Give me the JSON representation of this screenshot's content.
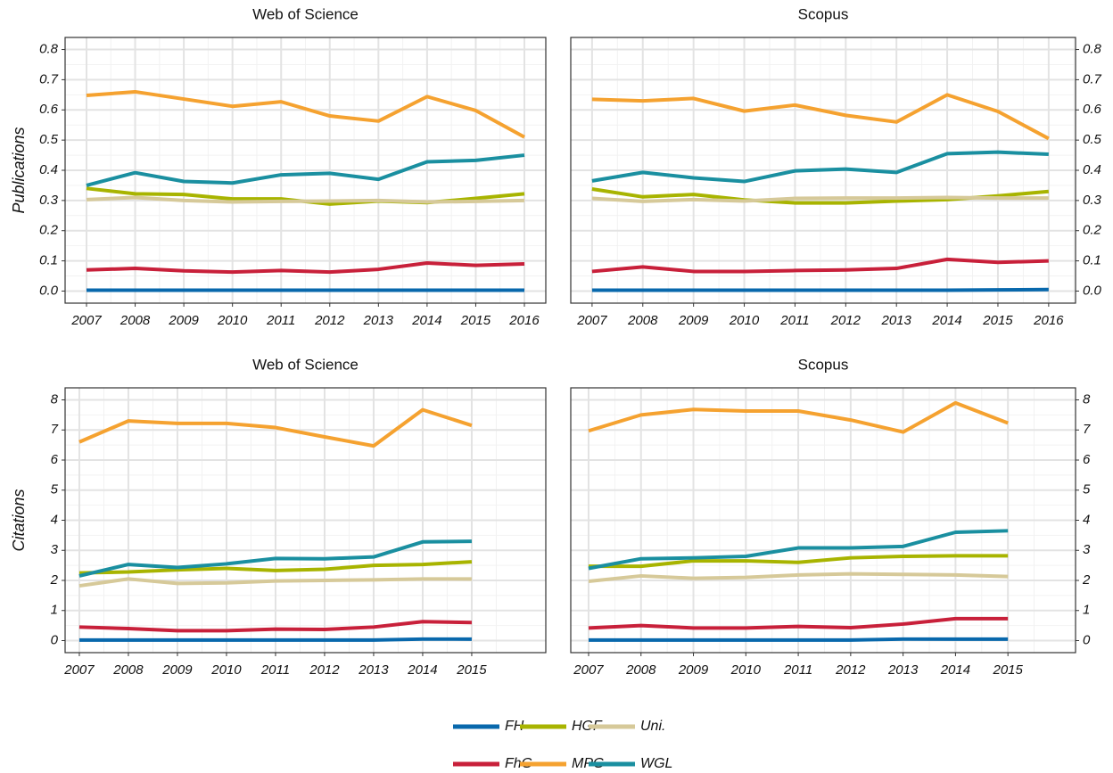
{
  "chart_data": [
    {
      "type": "line",
      "title": "Web of Science",
      "y_label": "Publications",
      "y_axis_position": "left",
      "x": [
        2007,
        2008,
        2009,
        2010,
        2011,
        2012,
        2013,
        2014,
        2015,
        2016
      ],
      "xlim": [
        2006.56,
        2016.44
      ],
      "xticks": [
        2007,
        2008,
        2009,
        2010,
        2011,
        2012,
        2013,
        2014,
        2015,
        2016
      ],
      "ylim": [
        -0.04,
        0.84
      ],
      "yticks": [
        {
          "value": 0,
          "label": "0.0"
        },
        0.1,
        0.2,
        0.3,
        0.4,
        0.5,
        0.6,
        0.7,
        0.8
      ],
      "grid": true,
      "series": [
        {
          "name": "FH",
          "color": "#0868ac",
          "values": [
            0.003,
            0.003,
            0.003,
            0.003,
            0.003,
            0.003,
            0.003,
            0.003,
            0.003,
            0.003
          ]
        },
        {
          "name": "HGF",
          "color": "#a8b400",
          "values": [
            0.34,
            0.322,
            0.32,
            0.305,
            0.305,
            0.288,
            0.298,
            0.293,
            0.307,
            0.322
          ]
        },
        {
          "name": "Uni.",
          "color": "#d6c999",
          "values": [
            0.303,
            0.31,
            0.3,
            0.295,
            0.297,
            0.298,
            0.3,
            0.295,
            0.297,
            0.3
          ]
        },
        {
          "name": "FhG",
          "color": "#c8203a",
          "values": [
            0.07,
            0.075,
            0.067,
            0.063,
            0.068,
            0.063,
            0.072,
            0.093,
            0.085,
            0.09
          ]
        },
        {
          "name": "MPG",
          "color": "#f5a230",
          "values": [
            0.648,
            0.66,
            0.636,
            0.612,
            0.627,
            0.58,
            0.563,
            0.644,
            0.598,
            0.51
          ]
        },
        {
          "name": "WGL",
          "color": "#1a8fa0",
          "values": [
            0.35,
            0.392,
            0.363,
            0.358,
            0.385,
            0.39,
            0.37,
            0.428,
            0.433,
            0.45
          ]
        }
      ]
    },
    {
      "type": "line",
      "title": "Scopus",
      "y_axis_position": "right",
      "x": [
        2007,
        2008,
        2009,
        2010,
        2011,
        2012,
        2013,
        2014,
        2015,
        2016
      ],
      "xlim": [
        2006.58,
        2016.53
      ],
      "xticks": [
        2007,
        2008,
        2009,
        2010,
        2011,
        2012,
        2013,
        2014,
        2015,
        2016
      ],
      "ylim": [
        -0.04,
        0.84
      ],
      "yticks": [
        {
          "value": 0,
          "label": "0.0"
        },
        0.1,
        0.2,
        0.3,
        0.4,
        0.5,
        0.6,
        0.7,
        0.8
      ],
      "grid": true,
      "series": [
        {
          "color": "#0868ac",
          "values": [
            0.003,
            0.003,
            0.003,
            0.003,
            0.003,
            0.003,
            0.003,
            0.003,
            0.004,
            0.005
          ]
        },
        {
          "color": "#a8b400",
          "values": [
            0.338,
            0.312,
            0.32,
            0.302,
            0.292,
            0.292,
            0.298,
            0.303,
            0.315,
            0.33
          ]
        },
        {
          "color": "#d6c999",
          "values": [
            0.307,
            0.297,
            0.303,
            0.298,
            0.307,
            0.308,
            0.308,
            0.31,
            0.308,
            0.308
          ]
        },
        {
          "color": "#c8203a",
          "values": [
            0.065,
            0.08,
            0.065,
            0.065,
            0.068,
            0.07,
            0.075,
            0.105,
            0.095,
            0.1
          ]
        },
        {
          "color": "#f5a230",
          "values": [
            0.635,
            0.63,
            0.638,
            0.596,
            0.616,
            0.582,
            0.56,
            0.65,
            0.595,
            0.505
          ]
        },
        {
          "color": "#1a8fa0",
          "values": [
            0.365,
            0.393,
            0.375,
            0.363,
            0.398,
            0.404,
            0.393,
            0.455,
            0.46,
            0.453
          ]
        }
      ]
    },
    {
      "type": "line",
      "title": "Web of Science",
      "y_label": "Citations",
      "y_axis_position": "left",
      "x": [
        2007,
        2008,
        2009,
        2010,
        2011,
        2012,
        2013,
        2014,
        2015
      ],
      "xlim": [
        2006.71,
        2016.51
      ],
      "xticks": [
        2007,
        2008,
        2009,
        2010,
        2011,
        2012,
        2013,
        2014,
        2015
      ],
      "ylim": [
        -0.4,
        8.4
      ],
      "yticks": [
        0,
        1,
        2,
        3,
        4,
        5,
        6,
        7,
        8
      ],
      "grid": true,
      "series": [
        {
          "color": "#0868ac",
          "values": [
            0.02,
            0.02,
            0.02,
            0.02,
            0.02,
            0.02,
            0.02,
            0.05,
            0.05
          ]
        },
        {
          "color": "#a8b400",
          "values": [
            2.25,
            2.28,
            2.35,
            2.4,
            2.33,
            2.37,
            2.5,
            2.53,
            2.62
          ]
        },
        {
          "color": "#d6c999",
          "values": [
            1.82,
            2.05,
            1.9,
            1.92,
            1.98,
            2.0,
            2.02,
            2.05,
            2.05
          ]
        },
        {
          "color": "#c8203a",
          "values": [
            0.45,
            0.4,
            0.33,
            0.33,
            0.38,
            0.37,
            0.45,
            0.63,
            0.6
          ]
        },
        {
          "color": "#f5a230",
          "values": [
            6.6,
            7.3,
            7.22,
            7.22,
            7.08,
            6.77,
            6.47,
            7.67,
            7.15
          ]
        },
        {
          "color": "#1a8fa0",
          "values": [
            2.15,
            2.53,
            2.43,
            2.55,
            2.73,
            2.72,
            2.78,
            3.28,
            3.3
          ]
        }
      ]
    },
    {
      "type": "line",
      "title": "Scopus",
      "y_axis_position": "right",
      "x": [
        2007,
        2008,
        2009,
        2010,
        2011,
        2012,
        2013,
        2014,
        2015
      ],
      "xlim": [
        2006.66,
        2016.29
      ],
      "xticks": [
        2007,
        2008,
        2009,
        2010,
        2011,
        2012,
        2013,
        2014,
        2015
      ],
      "ylim": [
        -0.4,
        8.4
      ],
      "yticks": [
        0,
        1,
        2,
        3,
        4,
        5,
        6,
        7,
        8
      ],
      "grid": true,
      "series": [
        {
          "color": "#0868ac",
          "values": [
            0.02,
            0.02,
            0.02,
            0.02,
            0.02,
            0.02,
            0.05,
            0.05,
            0.05
          ]
        },
        {
          "color": "#a8b400",
          "values": [
            2.47,
            2.47,
            2.65,
            2.65,
            2.6,
            2.75,
            2.8,
            2.82,
            2.82
          ]
        },
        {
          "color": "#d6c999",
          "values": [
            1.97,
            2.15,
            2.07,
            2.1,
            2.18,
            2.22,
            2.2,
            2.18,
            2.13
          ]
        },
        {
          "color": "#c8203a",
          "values": [
            0.42,
            0.5,
            0.42,
            0.42,
            0.47,
            0.43,
            0.55,
            0.73,
            0.73
          ]
        },
        {
          "color": "#f5a230",
          "values": [
            6.97,
            7.5,
            7.68,
            7.63,
            7.63,
            7.33,
            6.93,
            7.9,
            7.23
          ]
        },
        {
          "color": "#1a8fa0",
          "values": [
            2.4,
            2.72,
            2.75,
            2.8,
            3.08,
            3.08,
            3.13,
            3.6,
            3.65
          ]
        }
      ]
    }
  ]
}
